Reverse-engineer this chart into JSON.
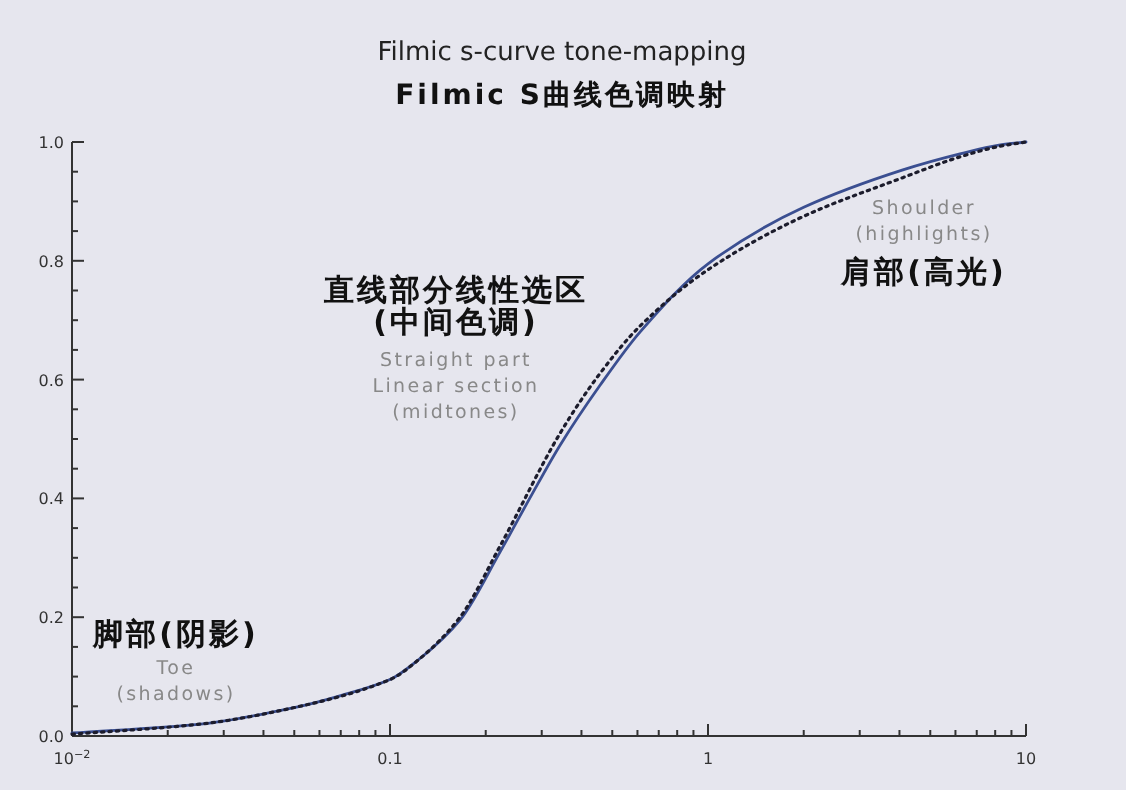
{
  "chart_data": {
    "type": "line",
    "title": "Filmic s-curve tone-mapping",
    "subtitle": "Filmic S曲线色调映射",
    "log": "x",
    "xlim": [
      0.01,
      10
    ],
    "ylim": [
      0,
      1
    ],
    "xticks": [
      {
        "value": 0.01,
        "label": "10$^{−2}$"
      },
      {
        "value": 0.1,
        "label": "0.1"
      },
      1,
      10
    ],
    "yticks": [
      {
        "value": 0,
        "label": "0.0"
      },
      0.2,
      0.4,
      0.6,
      0.8,
      {
        "value": 1,
        "label": "1.0"
      }
    ],
    "series": [
      {
        "color": "#3b4f91",
        "line_style": "solid",
        "x": [
          0.01,
          0.0253,
          0.0521,
          0.07,
          0.1,
          0.124,
          0.166,
          0.222,
          0.275,
          0.343,
          0.457,
          0.611,
          1,
          2.0,
          4.1,
          6.2,
          8.3,
          10
        ],
        "values": [
          0.005,
          0.02,
          0.05,
          0.068,
          0.095,
          0.13,
          0.195,
          0.31,
          0.4,
          0.49,
          0.59,
          0.68,
          0.795,
          0.89,
          0.953,
          0.98,
          0.995,
          1.0
        ]
      },
      {
        "color": "#1c1c2c",
        "line_style": "dotted",
        "x": [
          0.01,
          0.0253,
          0.0521,
          0.1,
          0.124,
          0.166,
          0.222,
          0.343,
          0.457,
          0.611,
          1,
          2.0,
          4.1,
          6.2,
          8.3,
          10
        ],
        "values": [
          0.003,
          0.02,
          0.05,
          0.095,
          0.13,
          0.2,
          0.32,
          0.51,
          0.61,
          0.69,
          0.785,
          0.875,
          0.94,
          0.975,
          0.993,
          1.0
        ]
      }
    ],
    "annotations": [
      "直线部分线性选区",
      "(中间色调)",
      "Straight part",
      "Linear section",
      "(midtones)",
      "Shoulder",
      "(highlights)",
      "肩部(高光)",
      "脚部(阴影)",
      "Toe",
      "(shadows)"
    ]
  }
}
